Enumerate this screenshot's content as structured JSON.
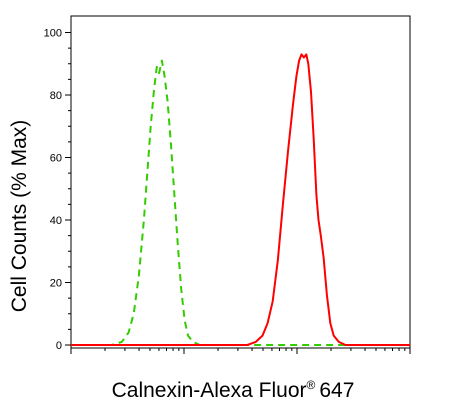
{
  "chart_data": {
    "type": "line",
    "title": "",
    "xlabel": "Calnexin-Alexa Fluor",
    "xlabel_mark": "®",
    "xlabel_suffix": "647",
    "ylabel": "Cell Counts (% Max)",
    "x_scale": "log",
    "x_tick_labels_shown": false,
    "ylim": [
      0,
      100
    ],
    "y_ticks": [
      0,
      20,
      40,
      60,
      80,
      100
    ],
    "y_tick_labels": [
      "0",
      "20",
      "40",
      "60",
      "80",
      "100"
    ],
    "grid": false,
    "legend": "none",
    "x_range": [
      0,
      1
    ],
    "series": [
      {
        "color": "#33cc00",
        "line_style": "dashed",
        "points": [
          {
            "x": 0.0,
            "y": 0
          },
          {
            "x": 0.12,
            "y": 0
          },
          {
            "x": 0.15,
            "y": 1
          },
          {
            "x": 0.17,
            "y": 4
          },
          {
            "x": 0.185,
            "y": 10
          },
          {
            "x": 0.2,
            "y": 22
          },
          {
            "x": 0.215,
            "y": 40
          },
          {
            "x": 0.225,
            "y": 55
          },
          {
            "x": 0.235,
            "y": 70
          },
          {
            "x": 0.245,
            "y": 82
          },
          {
            "x": 0.253,
            "y": 89
          },
          {
            "x": 0.26,
            "y": 87
          },
          {
            "x": 0.268,
            "y": 91
          },
          {
            "x": 0.276,
            "y": 86
          },
          {
            "x": 0.285,
            "y": 78
          },
          {
            "x": 0.295,
            "y": 64
          },
          {
            "x": 0.305,
            "y": 48
          },
          {
            "x": 0.315,
            "y": 32
          },
          {
            "x": 0.325,
            "y": 18
          },
          {
            "x": 0.335,
            "y": 8
          },
          {
            "x": 0.345,
            "y": 3
          },
          {
            "x": 0.36,
            "y": 1
          },
          {
            "x": 0.38,
            "y": 0
          },
          {
            "x": 1.0,
            "y": 0
          }
        ]
      },
      {
        "color": "#ff0000",
        "line_style": "solid",
        "points": [
          {
            "x": 0.0,
            "y": 0
          },
          {
            "x": 0.52,
            "y": 0
          },
          {
            "x": 0.545,
            "y": 1
          },
          {
            "x": 0.565,
            "y": 3
          },
          {
            "x": 0.58,
            "y": 7
          },
          {
            "x": 0.595,
            "y": 14
          },
          {
            "x": 0.61,
            "y": 27
          },
          {
            "x": 0.625,
            "y": 45
          },
          {
            "x": 0.64,
            "y": 62
          },
          {
            "x": 0.655,
            "y": 77
          },
          {
            "x": 0.665,
            "y": 86
          },
          {
            "x": 0.673,
            "y": 91
          },
          {
            "x": 0.68,
            "y": 93
          },
          {
            "x": 0.687,
            "y": 92
          },
          {
            "x": 0.694,
            "y": 93
          },
          {
            "x": 0.7,
            "y": 90
          },
          {
            "x": 0.708,
            "y": 81
          },
          {
            "x": 0.716,
            "y": 66
          },
          {
            "x": 0.724,
            "y": 48
          },
          {
            "x": 0.73,
            "y": 40
          },
          {
            "x": 0.737,
            "y": 35
          },
          {
            "x": 0.745,
            "y": 28
          },
          {
            "x": 0.755,
            "y": 16
          },
          {
            "x": 0.765,
            "y": 7
          },
          {
            "x": 0.775,
            "y": 3
          },
          {
            "x": 0.79,
            "y": 1
          },
          {
            "x": 0.81,
            "y": 0
          },
          {
            "x": 1.0,
            "y": 0
          }
        ]
      }
    ]
  }
}
